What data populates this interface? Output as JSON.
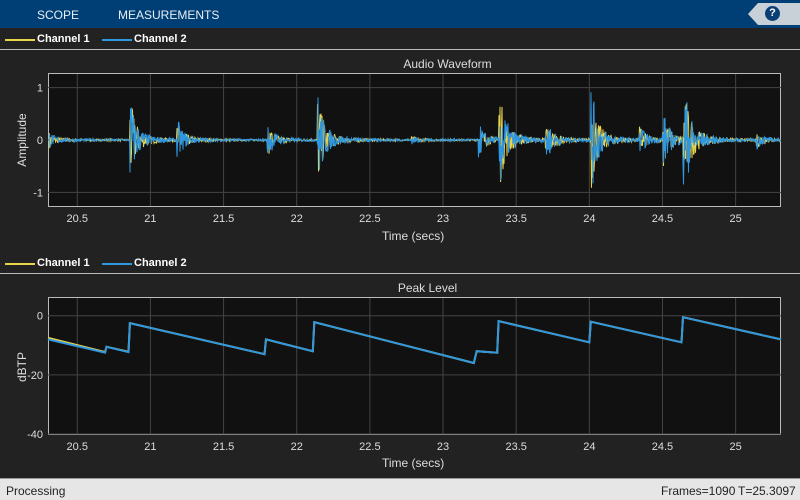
{
  "toolstrip": {
    "tabs": [
      "SCOPE",
      "MEASUREMENTS"
    ],
    "help_icon": "question-mark-icon"
  },
  "colors": {
    "channel1": "#e8d44d",
    "channel2": "#2f97e0",
    "axes_bg": "#111111",
    "toolstrip": "#003f75"
  },
  "legend": {
    "channel1": "Channel 1",
    "channel2": "Channel 2"
  },
  "chart_data": [
    {
      "type": "line",
      "title": "Audio Waveform",
      "xlabel": "Time (secs)",
      "ylabel": "Amplitude",
      "xlim": [
        20.3,
        25.31
      ],
      "ylim": [
        -1.26,
        1.26
      ],
      "grid": true,
      "xticks": [
        "20.5",
        "21",
        "21.5",
        "22",
        "22.5",
        "23",
        "23.5",
        "24",
        "24.5",
        "25"
      ],
      "yticks": [
        "1",
        "0",
        "-1"
      ],
      "series": [
        {
          "name": "Channel 1"
        },
        {
          "name": "Channel 2"
        }
      ],
      "transients": {
        "t": [
          20.3,
          20.86,
          21.18,
          21.8,
          22.14,
          22.78,
          23.24,
          23.38,
          23.7,
          24.01,
          24.34,
          24.5,
          24.64,
          25.14
        ],
        "amplitude": [
          0.15,
          0.75,
          0.35,
          0.3,
          0.85,
          0.06,
          0.3,
          0.95,
          0.4,
          0.95,
          0.25,
          0.5,
          1.1,
          0.15
        ]
      }
    },
    {
      "type": "line",
      "title": "Peak Level",
      "xlabel": "Time (secs)",
      "ylabel": "dBTP",
      "xlim": [
        20.3,
        25.31
      ],
      "ylim": [
        -40,
        6
      ],
      "grid": true,
      "xticks": [
        "20.5",
        "21",
        "21.5",
        "22",
        "22.5",
        "23",
        "23.5",
        "24",
        "24.5",
        "25"
      ],
      "yticks": [
        "0",
        "-20",
        "-40"
      ],
      "series": [
        {
          "name": "Channel 1",
          "x": [
            20.3,
            20.69,
            20.7,
            20.85,
            20.86,
            21.78,
            21.79,
            22.11,
            22.12,
            23.21,
            23.23,
            23.37,
            23.38,
            24.0,
            24.01,
            24.63,
            24.64,
            25.31
          ],
          "y": [
            -7.5,
            -12.3,
            -10.5,
            -12.2,
            -2.5,
            -13,
            -8,
            -12,
            -2.2,
            -16,
            -12,
            -12.5,
            -1.8,
            -9,
            -2,
            -9,
            -0.5,
            -8
          ]
        },
        {
          "name": "Channel 2",
          "x": [
            20.3,
            20.69,
            20.7,
            20.85,
            20.86,
            21.78,
            21.79,
            22.11,
            22.12,
            23.21,
            23.23,
            23.37,
            23.38,
            24.0,
            24.01,
            24.63,
            24.64,
            25.31
          ],
          "y": [
            -8,
            -12.5,
            -10.5,
            -12.3,
            -2.5,
            -13,
            -8,
            -12,
            -2.2,
            -16,
            -12,
            -12.5,
            -1.8,
            -9,
            -2,
            -9,
            -0.5,
            -8
          ]
        }
      ]
    }
  ],
  "status": {
    "left": "Processing",
    "frames": "Frames=1090",
    "time": "T=25.3097"
  }
}
